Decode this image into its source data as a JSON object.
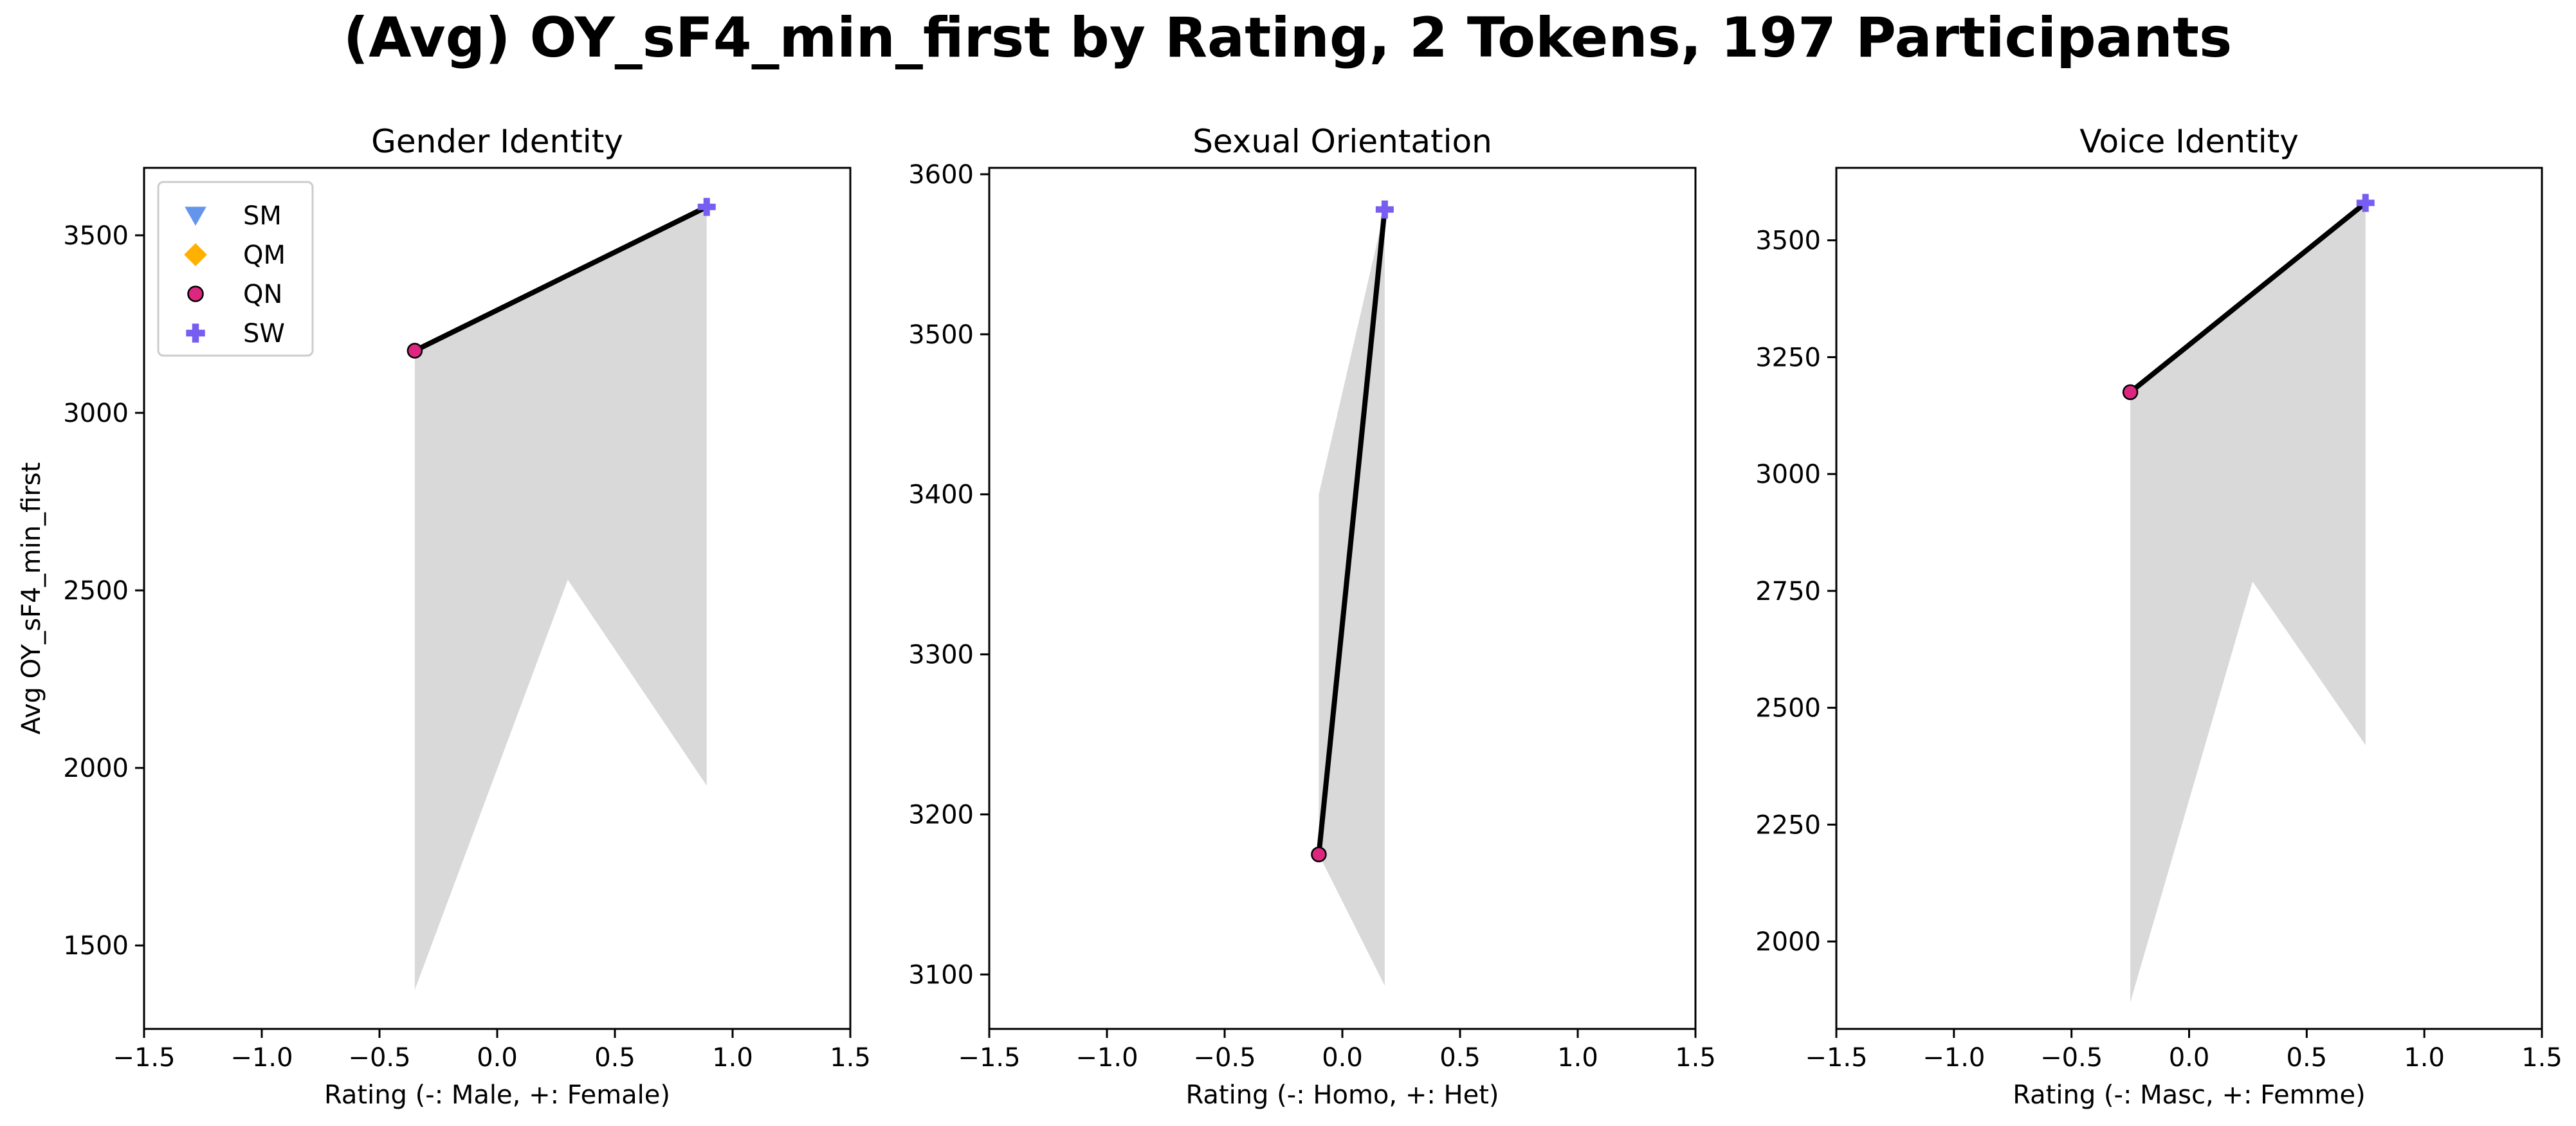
{
  "figure": {
    "title": "(Avg) OY_sF4_min_first by Rating, 2 Tokens, 197 Participants"
  },
  "colors": {
    "SM": "#6495ED",
    "QM": "#FFB000",
    "QN": "#DC267F",
    "SW": "#785EF0",
    "line": "#000000",
    "band": "#d9d9d9"
  },
  "legend": {
    "position": "upper-left",
    "items": [
      {
        "label": "SM",
        "marker": "triangle-down"
      },
      {
        "label": "QM",
        "marker": "diamond"
      },
      {
        "label": "QN",
        "marker": "circle"
      },
      {
        "label": "SW",
        "marker": "plus"
      }
    ]
  },
  "chart_data": [
    {
      "type": "line",
      "title": "Gender Identity",
      "xlabel": "Rating (-: Male, +: Female)",
      "ylabel": "Avg OY_sF4_min_first",
      "xlim": [
        -1.5,
        1.5
      ],
      "ylim": [
        1265,
        3690
      ],
      "xticks": [
        -1.5,
        -1.0,
        -0.5,
        0.0,
        0.5,
        1.0,
        1.5
      ],
      "xtick_labels": [
        "−1.5",
        "−1.0",
        "−0.5",
        "0.0",
        "0.5",
        "1.0",
        "1.5"
      ],
      "yticks": [
        1500,
        2000,
        2500,
        3000,
        3500
      ],
      "ytick_labels": [
        "1500",
        "2000",
        "2500",
        "3000",
        "3500"
      ],
      "grid": false,
      "series": [
        {
          "name": "QN",
          "marker": "circle",
          "x": [
            -0.35
          ],
          "y": [
            3175
          ]
        },
        {
          "name": "SW",
          "marker": "plus",
          "x": [
            0.89
          ],
          "y": [
            3580
          ]
        }
      ],
      "line": {
        "x": [
          -0.35,
          0.89
        ],
        "y": [
          3175,
          3580
        ]
      },
      "band": {
        "x": [
          -0.35,
          0.3,
          0.89
        ],
        "upper": [
          3175,
          3378,
          3580
        ],
        "lower": [
          1375,
          2530,
          1950
        ]
      }
    },
    {
      "type": "line",
      "title": "Sexual Orientation",
      "xlabel": "Rating (-: Homo, +: Het)",
      "ylabel": "",
      "xlim": [
        -1.5,
        1.5
      ],
      "ylim": [
        3066,
        3604
      ],
      "xticks": [
        -1.5,
        -1.0,
        -0.5,
        0.0,
        0.5,
        1.0,
        1.5
      ],
      "xtick_labels": [
        "−1.5",
        "−1.0",
        "−0.5",
        "0.0",
        "0.5",
        "1.0",
        "1.5"
      ],
      "yticks": [
        3100,
        3200,
        3300,
        3400,
        3500,
        3600
      ],
      "ytick_labels": [
        "3100",
        "3200",
        "3300",
        "3400",
        "3500",
        "3600"
      ],
      "grid": false,
      "series": [
        {
          "name": "QN",
          "marker": "circle",
          "x": [
            -0.1
          ],
          "y": [
            3175
          ]
        },
        {
          "name": "SW",
          "marker": "plus",
          "x": [
            0.18
          ],
          "y": [
            3578
          ]
        }
      ],
      "line": {
        "x": [
          -0.1,
          0.18
        ],
        "y": [
          3175,
          3578
        ]
      },
      "band": {
        "x": [
          -0.1,
          0.18
        ],
        "upper": [
          3400,
          3578
        ],
        "lower": [
          3175,
          3093
        ]
      }
    },
    {
      "type": "line",
      "title": "Voice Identity",
      "xlabel": "Rating (-: Masc, +: Femme)",
      "ylabel": "",
      "xlim": [
        -1.5,
        1.5
      ],
      "ylim": [
        1813,
        3655
      ],
      "xticks": [
        -1.5,
        -1.0,
        -0.5,
        0.0,
        0.5,
        1.0,
        1.5
      ],
      "xtick_labels": [
        "−1.5",
        "−1.0",
        "−0.5",
        "0.0",
        "0.5",
        "1.0",
        "1.5"
      ],
      "yticks": [
        2000,
        2250,
        2500,
        2750,
        3000,
        3250,
        3500
      ],
      "ytick_labels": [
        "2000",
        "2250",
        "2500",
        "2750",
        "3000",
        "3250",
        "3500"
      ],
      "grid": false,
      "series": [
        {
          "name": "QN",
          "marker": "circle",
          "x": [
            -0.25
          ],
          "y": [
            3175
          ]
        },
        {
          "name": "SW",
          "marker": "plus",
          "x": [
            0.75
          ],
          "y": [
            3580
          ]
        }
      ],
      "line": {
        "x": [
          -0.25,
          0.75
        ],
        "y": [
          3175,
          3580
        ]
      },
      "band": {
        "x": [
          -0.25,
          0.27,
          0.75
        ],
        "upper": [
          3175,
          3385,
          3580
        ],
        "lower": [
          1870,
          2770,
          2420
        ]
      }
    }
  ]
}
